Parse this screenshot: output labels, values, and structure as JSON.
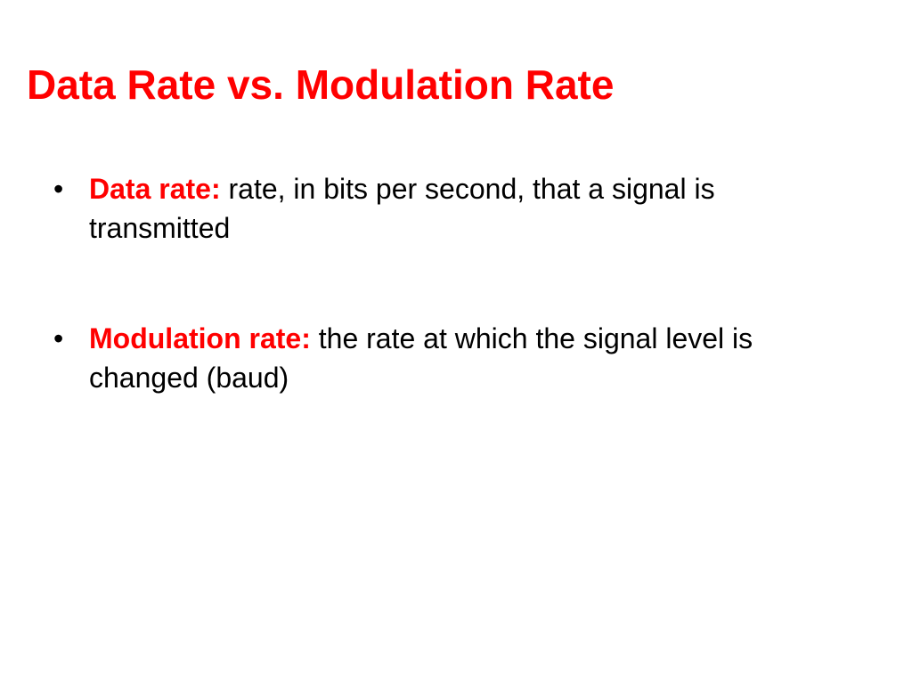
{
  "slide": {
    "title": "Data Rate vs. Modulation Rate",
    "bullets": [
      {
        "term": "Data rate:",
        "text": "rate, in bits per second, that a signal is transmitted"
      },
      {
        "term": "Modulation rate:",
        "text": "the rate at which the signal level is changed (baud)"
      }
    ]
  }
}
